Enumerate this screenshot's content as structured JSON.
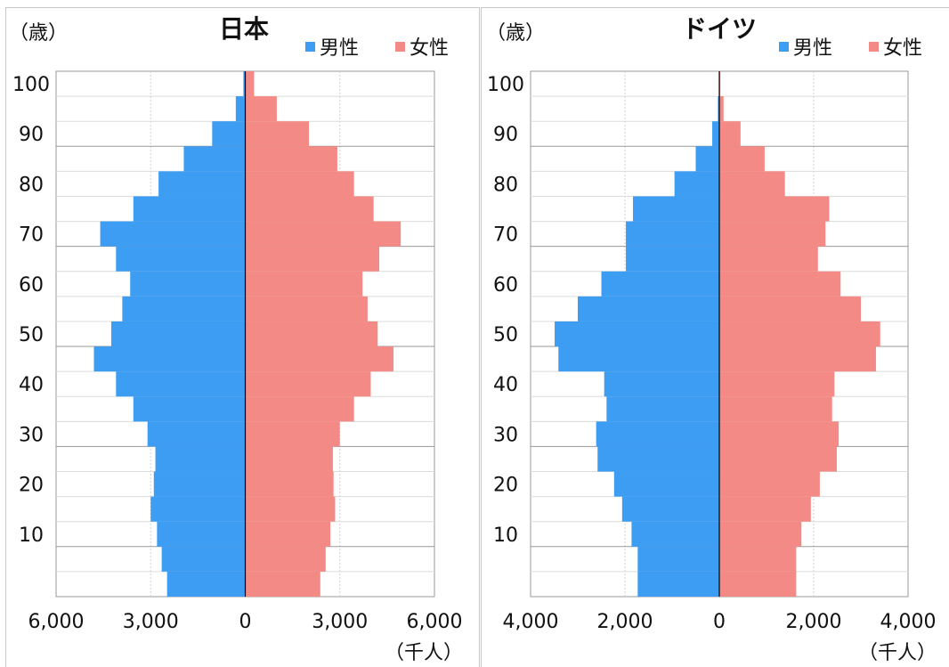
{
  "chart_data": [
    {
      "type": "bar",
      "orientation": "horizontal",
      "title": "日本",
      "ylabel": "（歳）",
      "xlabel": "（千人）",
      "age_ticks": [
        "10",
        "20",
        "30",
        "40",
        "50",
        "60",
        "70",
        "80",
        "90",
        "100"
      ],
      "x_ticks": [
        "6,000",
        "3,000",
        "0",
        "3,000",
        "6,000"
      ],
      "xlim": [
        -6000,
        6000
      ],
      "age_groups": [
        "0-4",
        "5-9",
        "10-14",
        "15-19",
        "20-24",
        "25-29",
        "30-34",
        "35-39",
        "40-44",
        "45-49",
        "50-54",
        "55-59",
        "60-64",
        "65-69",
        "70-74",
        "75-79",
        "80-84",
        "85-89",
        "90-94",
        "95-99",
        "100+"
      ],
      "series": [
        {
          "name": "男性",
          "color": "#3d9df2",
          "values": [
            2480,
            2650,
            2800,
            3000,
            2900,
            2850,
            3100,
            3550,
            4100,
            4800,
            4250,
            3900,
            3650,
            4100,
            4600,
            3550,
            2750,
            1950,
            1050,
            300,
            60
          ]
        },
        {
          "name": "女性",
          "color": "#f48a85",
          "values": [
            2380,
            2550,
            2700,
            2850,
            2800,
            2780,
            3000,
            3450,
            3980,
            4700,
            4200,
            3880,
            3720,
            4250,
            4930,
            4070,
            3450,
            2920,
            2020,
            1000,
            280
          ]
        }
      ]
    },
    {
      "type": "bar",
      "orientation": "horizontal",
      "title": "ドイツ",
      "ylabel": "（歳）",
      "xlabel": "（千人）",
      "age_ticks": [
        "10",
        "20",
        "30",
        "40",
        "50",
        "60",
        "70",
        "80",
        "90",
        "100"
      ],
      "x_ticks": [
        "4,000",
        "2,000",
        "0",
        "2,000",
        "4,000"
      ],
      "xlim": [
        -4000,
        4000
      ],
      "age_groups": [
        "0-4",
        "5-9",
        "10-14",
        "15-19",
        "20-24",
        "25-29",
        "30-34",
        "35-39",
        "40-44",
        "45-49",
        "50-54",
        "55-59",
        "60-64",
        "65-69",
        "70-74",
        "75-79",
        "80-84",
        "85-89",
        "90-94",
        "95-99",
        "100+"
      ],
      "series": [
        {
          "name": "男性",
          "color": "#3d9df2",
          "values": [
            1730,
            1730,
            1860,
            2060,
            2230,
            2580,
            2610,
            2390,
            2440,
            3410,
            3490,
            3000,
            2500,
            1980,
            1980,
            1830,
            950,
            500,
            150,
            30,
            5
          ]
        },
        {
          "name": "女性",
          "color": "#f48a85",
          "values": [
            1630,
            1630,
            1740,
            1940,
            2130,
            2490,
            2530,
            2390,
            2440,
            3320,
            3410,
            3000,
            2570,
            2090,
            2250,
            2330,
            1390,
            960,
            450,
            90,
            20
          ]
        }
      ]
    }
  ]
}
